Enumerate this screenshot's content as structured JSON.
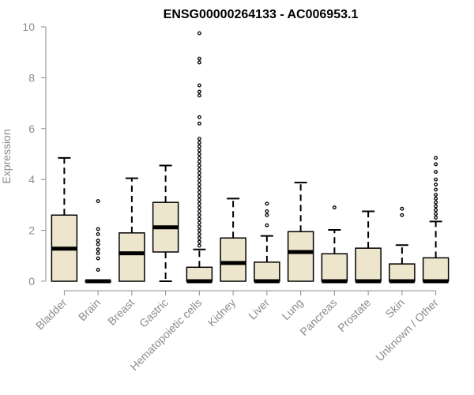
{
  "chart_data": {
    "type": "box",
    "title": "ENSG00000264133 - AC006953.1",
    "xlabel": "",
    "ylabel": "Expression",
    "ylim": [
      0,
      10
    ],
    "yticks": [
      "0",
      "2",
      "4",
      "6",
      "8",
      "10"
    ],
    "grid": false,
    "box_fill": "#ede6cd",
    "box_stroke": "#000000",
    "axis_color": "#8c8c8c",
    "categories": [
      "Bladder",
      "Brain",
      "Breast",
      "Gastric",
      "Hematopoietic cells",
      "Kidney",
      "Liver",
      "Lung",
      "Pancreas",
      "Prostate",
      "Skin",
      "Unknown / Other"
    ],
    "boxes": [
      {
        "category": "Bladder",
        "whisker_low": 0,
        "q1": 0,
        "median": 1.28,
        "q3": 2.6,
        "whisker_high": 4.85,
        "outliers": []
      },
      {
        "category": "Brain",
        "whisker_low": 0,
        "q1": 0,
        "median": 0,
        "q3": 0,
        "whisker_high": 0,
        "outliers": [
          0.45,
          0.9,
          1.1,
          1.25,
          1.45,
          1.6,
          1.85,
          2.05,
          3.15
        ]
      },
      {
        "category": "Breast",
        "whisker_low": 0,
        "q1": 0,
        "median": 1.1,
        "q3": 1.9,
        "whisker_high": 4.05,
        "outliers": []
      },
      {
        "category": "Gastric",
        "whisker_low": 0,
        "q1": 1.15,
        "median": 2.12,
        "q3": 3.1,
        "whisker_high": 4.55,
        "outliers": []
      },
      {
        "category": "Hematopoietic cells",
        "whisker_low": 0,
        "q1": 0,
        "median": 0,
        "q3": 0.55,
        "whisker_high": 1.25,
        "outliers": [
          1.4,
          1.55,
          1.7,
          1.85,
          2.0,
          2.15,
          2.3,
          2.45,
          2.6,
          2.75,
          2.9,
          3.05,
          3.2,
          3.35,
          3.5,
          3.65,
          3.8,
          3.95,
          4.1,
          4.25,
          4.4,
          4.55,
          4.7,
          4.85,
          5.0,
          5.15,
          5.3,
          5.45,
          5.6,
          6.2,
          6.45,
          7.3,
          7.45,
          7.7,
          8.6,
          8.75,
          9.75
        ]
      },
      {
        "category": "Kidney",
        "whisker_low": 0,
        "q1": 0,
        "median": 0.72,
        "q3": 1.7,
        "whisker_high": 3.25,
        "outliers": []
      },
      {
        "category": "Liver",
        "whisker_low": 0,
        "q1": 0,
        "median": 0,
        "q3": 0.75,
        "whisker_high": 1.78,
        "outliers": [
          2.2,
          2.6,
          2.75,
          3.05
        ]
      },
      {
        "category": "Lung",
        "whisker_low": 0,
        "q1": 0,
        "median": 1.15,
        "q3": 1.95,
        "whisker_high": 3.88,
        "outliers": []
      },
      {
        "category": "Pancreas",
        "whisker_low": 0,
        "q1": 0,
        "median": 0,
        "q3": 1.08,
        "whisker_high": 2.02,
        "outliers": [
          2.9
        ]
      },
      {
        "category": "Prostate",
        "whisker_low": 0,
        "q1": 0,
        "median": 0,
        "q3": 1.3,
        "whisker_high": 2.75,
        "outliers": []
      },
      {
        "category": "Skin",
        "whisker_low": 0,
        "q1": 0,
        "median": 0,
        "q3": 0.68,
        "whisker_high": 1.42,
        "outliers": [
          2.6,
          2.85
        ]
      },
      {
        "category": "Unknown / Other",
        "whisker_low": 0,
        "q1": 0,
        "median": 0,
        "q3": 0.92,
        "whisker_high": 2.35,
        "outliers": [
          2.5,
          2.65,
          2.8,
          2.95,
          3.1,
          3.25,
          3.4,
          3.6,
          3.8,
          4.0,
          4.3,
          4.6,
          4.85
        ]
      }
    ]
  }
}
